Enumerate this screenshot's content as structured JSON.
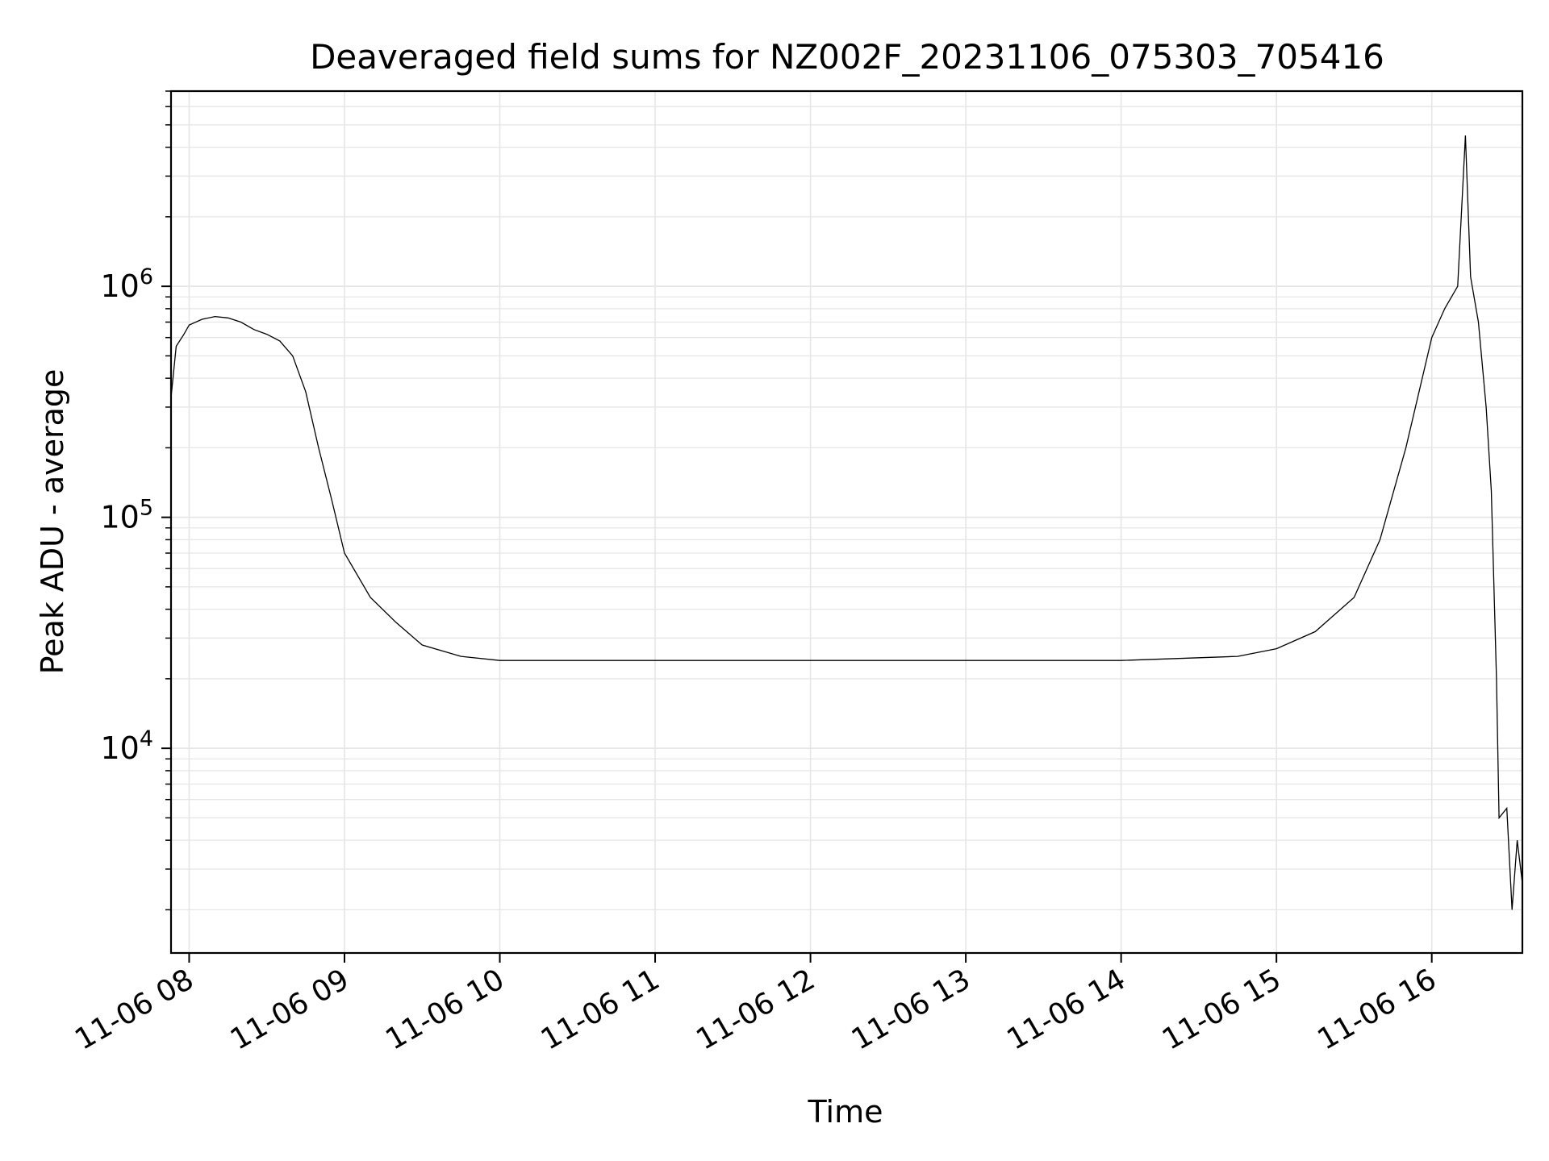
{
  "chart_data": {
    "type": "line",
    "title": "Deaveraged field sums for NZ002F_20231106_075303_705416",
    "xlabel": "Time",
    "ylabel": "Peak ADU - average",
    "yscale": "log",
    "xlim": [
      "2023-11-06 07:53",
      "2023-11-06 16:35"
    ],
    "ylim": [
      1300,
      7000000
    ],
    "x_ticks": [
      {
        "value": "2023-11-06 08:00",
        "label": "11-06 08"
      },
      {
        "value": "2023-11-06 09:00",
        "label": "11-06 09"
      },
      {
        "value": "2023-11-06 10:00",
        "label": "11-06 10"
      },
      {
        "value": "2023-11-06 11:00",
        "label": "11-06 11"
      },
      {
        "value": "2023-11-06 12:00",
        "label": "11-06 12"
      },
      {
        "value": "2023-11-06 13:00",
        "label": "11-06 13"
      },
      {
        "value": "2023-11-06 14:00",
        "label": "11-06 14"
      },
      {
        "value": "2023-11-06 15:00",
        "label": "11-06 15"
      },
      {
        "value": "2023-11-06 16:00",
        "label": "11-06 16"
      }
    ],
    "y_ticks": [
      {
        "value": 10000,
        "base": "10",
        "exp": "4"
      },
      {
        "value": 100000,
        "base": "10",
        "exp": "5"
      },
      {
        "value": 1000000,
        "base": "10",
        "exp": "6"
      }
    ],
    "grid": true,
    "line_color": "#000000",
    "grid_color": "#e6e6e6",
    "series": [
      {
        "values_description_note": "",
        "points": [
          [
            "2023-11-06 07:53",
            330000
          ],
          [
            "2023-11-06 07:55",
            550000
          ],
          [
            "2023-11-06 07:58",
            620000
          ],
          [
            "2023-11-06 08:00",
            680000
          ],
          [
            "2023-11-06 08:05",
            720000
          ],
          [
            "2023-11-06 08:10",
            740000
          ],
          [
            "2023-11-06 08:15",
            730000
          ],
          [
            "2023-11-06 08:20",
            700000
          ],
          [
            "2023-11-06 08:25",
            650000
          ],
          [
            "2023-11-06 08:30",
            620000
          ],
          [
            "2023-11-06 08:35",
            580000
          ],
          [
            "2023-11-06 08:40",
            500000
          ],
          [
            "2023-11-06 08:45",
            350000
          ],
          [
            "2023-11-06 08:50",
            200000
          ],
          [
            "2023-11-06 08:55",
            120000
          ],
          [
            "2023-11-06 09:00",
            70000
          ],
          [
            "2023-11-06 09:10",
            45000
          ],
          [
            "2023-11-06 09:20",
            35000
          ],
          [
            "2023-11-06 09:30",
            28000
          ],
          [
            "2023-11-06 09:45",
            25000
          ],
          [
            "2023-11-06 10:00",
            24000
          ],
          [
            "2023-11-06 11:00",
            24000
          ],
          [
            "2023-11-06 12:00",
            24000
          ],
          [
            "2023-11-06 13:00",
            24000
          ],
          [
            "2023-11-06 14:00",
            24000
          ],
          [
            "2023-11-06 14:45",
            25000
          ],
          [
            "2023-11-06 15:00",
            27000
          ],
          [
            "2023-11-06 15:15",
            32000
          ],
          [
            "2023-11-06 15:30",
            45000
          ],
          [
            "2023-11-06 15:40",
            80000
          ],
          [
            "2023-11-06 15:50",
            200000
          ],
          [
            "2023-11-06 16:00",
            600000
          ],
          [
            "2023-11-06 16:05",
            800000
          ],
          [
            "2023-11-06 16:10",
            1000000
          ],
          [
            "2023-11-06 16:13",
            4500000
          ],
          [
            "2023-11-06 16:15",
            1100000
          ],
          [
            "2023-11-06 16:18",
            700000
          ],
          [
            "2023-11-06 16:21",
            300000
          ],
          [
            "2023-11-06 16:23",
            130000
          ],
          [
            "2023-11-06 16:25",
            20000
          ],
          [
            "2023-11-06 16:26",
            5000
          ],
          [
            "2023-11-06 16:29",
            5500
          ],
          [
            "2023-11-06 16:31",
            2000
          ],
          [
            "2023-11-06 16:33",
            4000
          ],
          [
            "2023-11-06 16:35",
            2600
          ]
        ]
      }
    ]
  }
}
